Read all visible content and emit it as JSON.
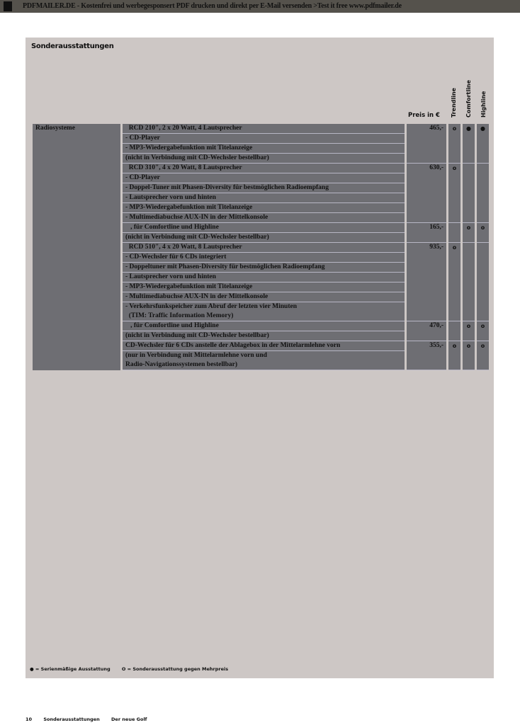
{
  "banner": "PDFMAILER.DE - Kostenfrei und werbegesponsert PDF drucken und direkt per E-Mail versenden >Test it free www.pdfmailer.de",
  "title": "Sonderausstattungen",
  "headers": {
    "price": "Preis in €",
    "cols": [
      "Trendline",
      "Comfortline",
      "Highline"
    ]
  },
  "category": "Radiosysteme",
  "symbols": {
    "serie": "●",
    "option": "o"
  },
  "groups": [
    {
      "price": "465,-",
      "marks": [
        "o",
        "●",
        "●"
      ],
      "rows": [
        "  RCD 210\", 2 x 20 Watt, 4 Lautsprecher",
        "- CD-Player",
        "- MP3-Wiedergabefunktion mit Titelanzeige",
        "(nicht in Verbindung mit CD-Wechsler bestellbar)"
      ]
    },
    {
      "price": "630,-",
      "marks": [
        "o",
        "",
        ""
      ],
      "rows": [
        "  RCD 310\", 4 x 20 Watt, 8 Lautsprecher",
        "- CD-Player",
        "- Doppel-Tuner mit Phasen-Diversity für bestmöglichen Radioempfang",
        "- Lautsprecher vorn und hinten",
        "- MP3-Wiedergabefunktion mit Titelanzeige",
        "- Multimediabuchse AUX-IN in der Mittelkonsole"
      ]
    },
    {
      "price": "165,-",
      "marks": [
        "",
        "o",
        "o"
      ],
      "rows": [
        "   , für Comfortline und Highline",
        "(nicht in Verbindung mit CD-Wechsler bestellbar)"
      ]
    },
    {
      "price": "935,-",
      "marks": [
        "o",
        "",
        ""
      ],
      "rows": [
        "  RCD 510\", 4 x 20 Watt, 8 Lautsprecher",
        "- CD-Wechsler für 6 CDs integriert",
        "- Doppeltuner mit Phasen-Diversity für bestmöglichen Radioempfang",
        "- Lautsprecher vorn und hinten",
        "- MP3-Wiedergabefunktion mit Titelanzeige",
        "- Multimediabuchse AUX-IN in der Mittelkonsole",
        "- Verkehrsfunkspeicher zum Abruf der letzten vier Minuten\n  (TIM: Traffic Information Memory)"
      ]
    },
    {
      "price": "470,-",
      "marks": [
        "",
        "o",
        "o"
      ],
      "rows": [
        "   , für Comfortline und Highline",
        "(nicht in Verbindung mit CD-Wechsler bestellbar)"
      ]
    },
    {
      "price": "355,-",
      "marks": [
        "o",
        "o",
        "o"
      ],
      "rows": [
        "CD-Wechsler für 6 CDs anstelle der Ablagebox in der Mittelarmlehne vorn",
        "(nur in Verbindung mit Mittelarmlehne vorn und\nRadio-Navigationssystemen bestellbar)"
      ]
    }
  ],
  "legend": {
    "serie": "● = Serienmäßige Ausstattung",
    "option": "O = Sonderausstattung gegen Mehrpreis"
  },
  "footer": {
    "page": "10",
    "section": "Sonderausstattungen",
    "model": "Der neue Golf"
  }
}
